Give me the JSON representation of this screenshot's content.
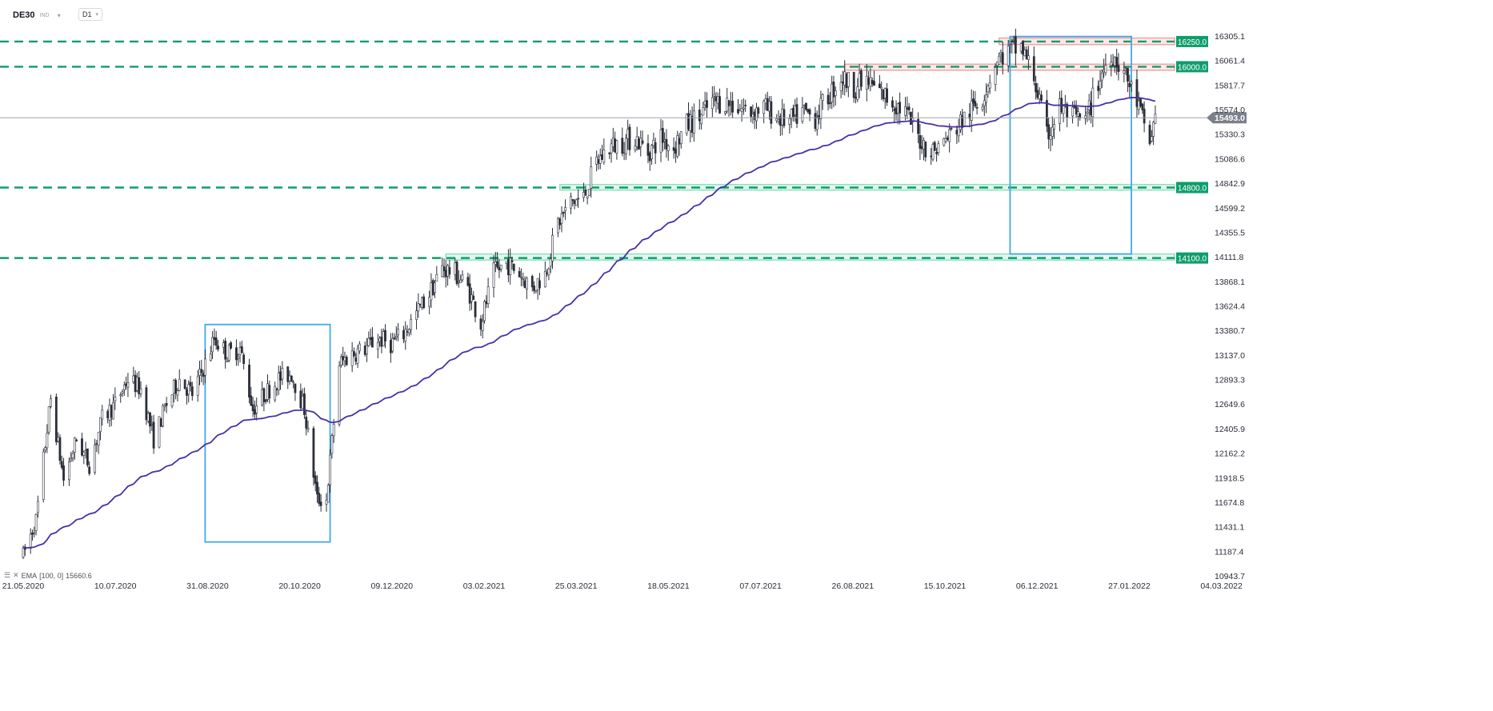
{
  "header": {
    "symbol": "DE30",
    "market": "IND",
    "timeframe": "D1",
    "caret": "▾"
  },
  "indicator": {
    "eye_icon": "☰",
    "close_icon": "✕",
    "label": "EMA",
    "params": "[100, 0]",
    "value": "15660.6"
  },
  "colors": {
    "up_candle": "#ffffff",
    "down_candle": "#2a2e39",
    "wick": "#2a2e39",
    "ema": "#4b2fa8",
    "support": "#0f9d6b",
    "resistance_zone": "#f4a3a3",
    "support_zone": "#8fe0c0",
    "box": "#3fa9e6",
    "price_tag": "#7b7f8a"
  },
  "chart_data": {
    "type": "candlestick",
    "timeframe": "D1",
    "y_axis_ticks": [
      "16305.1",
      "16061.4",
      "15817.7",
      "15574.0",
      "15330.3",
      "15086.6",
      "14842.9",
      "14599.2",
      "14355.5",
      "14111.8",
      "13868.1",
      "13624.4",
      "13380.7",
      "13137.0",
      "12893.3",
      "12649.6",
      "12405.9",
      "12162.2",
      "11918.5",
      "11674.8",
      "11431.1",
      "11187.4",
      "10943.7"
    ],
    "ylim": [
      10943.7,
      16305.1
    ],
    "x_axis_ticks": [
      "21.05.2020",
      "10.07.2020",
      "31.08.2020",
      "20.10.2020",
      "09.12.2020",
      "03.02.2021",
      "25.03.2021",
      "18.05.2021",
      "07.07.2021",
      "26.08.2021",
      "15.10.2021",
      "06.12.2021",
      "27.01.2022",
      "04.03.2022"
    ],
    "current_price": "15493.0",
    "levels": [
      {
        "label": "16250.0",
        "value": 16250.0,
        "kind": "resistance"
      },
      {
        "label": "16000.0",
        "value": 16000.0,
        "kind": "resistance"
      },
      {
        "label": "14800.0",
        "value": 14800.0,
        "kind": "support"
      },
      {
        "label": "14100.0",
        "value": 14100.0,
        "kind": "support"
      }
    ],
    "zones": [
      {
        "from": "20.12.2021",
        "to": "27.01.2022",
        "low": 16220,
        "high": 16285,
        "kind": "resistance",
        "start": "03.11.2021"
      },
      {
        "start": "11.08.2021",
        "low": 15965,
        "high": 16025,
        "kind": "resistance"
      },
      {
        "start": "09.03.2021",
        "low": 14775,
        "high": 14830,
        "kind": "support"
      },
      {
        "start": "06.01.2021",
        "low": 14080,
        "high": 14140,
        "kind": "support"
      }
    ],
    "boxes": [
      {
        "from": "28.08.2020",
        "to": "04.11.2020",
        "low": 11280,
        "high": 13440
      },
      {
        "from": "09.11.2021",
        "to": "14.01.2022",
        "low": 14140,
        "high": 16300
      }
    ],
    "ema_period": 100,
    "ema_last": 15660.6,
    "anchors": [
      [
        "21.05.2020",
        11150
      ],
      [
        "28.05.2020",
        11500
      ],
      [
        "05.06.2020",
        12700
      ],
      [
        "12.06.2020",
        11900
      ],
      [
        "19.06.2020",
        12300
      ],
      [
        "26.06.2020",
        12050
      ],
      [
        "03.07.2020",
        12500
      ],
      [
        "10.07.2020",
        12650
      ],
      [
        "17.07.2020",
        12900
      ],
      [
        "24.07.2020",
        12800
      ],
      [
        "31.07.2020",
        12300
      ],
      [
        "07.08.2020",
        12650
      ],
      [
        "14.08.2020",
        12900
      ],
      [
        "21.08.2020",
        12750
      ],
      [
        "28.08.2020",
        13050
      ],
      [
        "02.09.2020",
        13300
      ],
      [
        "09.09.2020",
        13150
      ],
      [
        "16.09.2020",
        13200
      ],
      [
        "23.09.2020",
        12600
      ],
      [
        "30.09.2020",
        12760
      ],
      [
        "07.10.2020",
        12900
      ],
      [
        "14.10.2020",
        12950
      ],
      [
        "21.10.2020",
        12600
      ],
      [
        "28.10.2020",
        11700
      ],
      [
        "02.11.2020",
        11700
      ],
      [
        "09.11.2020",
        13050
      ],
      [
        "16.11.2020",
        13150
      ],
      [
        "23.11.2020",
        13200
      ],
      [
        "30.11.2020",
        13300
      ],
      [
        "07.12.2020",
        13250
      ],
      [
        "14.12.2020",
        13350
      ],
      [
        "21.12.2020",
        13550
      ],
      [
        "28.12.2020",
        13750
      ],
      [
        "04.01.2021",
        14000
      ],
      [
        "11.01.2021",
        13950
      ],
      [
        "18.01.2021",
        13800
      ],
      [
        "25.01.2021",
        13450
      ],
      [
        "01.02.2021",
        13950
      ],
      [
        "08.02.2021",
        14050
      ],
      [
        "15.02.2021",
        13950
      ],
      [
        "22.02.2021",
        13800
      ],
      [
        "01.03.2021",
        13950
      ],
      [
        "08.03.2021",
        14450
      ],
      [
        "15.03.2021",
        14650
      ],
      [
        "22.03.2021",
        14700
      ],
      [
        "29.03.2021",
        15050
      ],
      [
        "05.04.2021",
        15200
      ],
      [
        "12.04.2021",
        15250
      ],
      [
        "19.04.2021",
        15300
      ],
      [
        "26.04.2021",
        15150
      ],
      [
        "03.05.2021",
        15300
      ],
      [
        "10.05.2021",
        15200
      ],
      [
        "17.05.2021",
        15420
      ],
      [
        "24.05.2021",
        15500
      ],
      [
        "31.05.2021",
        15650
      ],
      [
        "07.06.2021",
        15650
      ],
      [
        "14.06.2021",
        15600
      ],
      [
        "21.06.2021",
        15550
      ],
      [
        "28.06.2021",
        15600
      ],
      [
        "05.07.2021",
        15500
      ],
      [
        "12.07.2021",
        15450
      ],
      [
        "19.07.2021",
        15550
      ],
      [
        "26.07.2021",
        15500
      ],
      [
        "02.08.2021",
        15700
      ],
      [
        "09.08.2021",
        15900
      ],
      [
        "16.08.2021",
        15800
      ],
      [
        "23.08.2021",
        15850
      ],
      [
        "30.08.2021",
        15750
      ],
      [
        "06.09.2021",
        15650
      ],
      [
        "13.09.2021",
        15550
      ],
      [
        "20.09.2021",
        15300
      ],
      [
        "27.09.2021",
        15150
      ],
      [
        "04.10.2021",
        15250
      ],
      [
        "11.10.2021",
        15400
      ],
      [
        "18.10.2021",
        15550
      ],
      [
        "25.10.2021",
        15700
      ],
      [
        "01.11.2021",
        16050
      ],
      [
        "08.11.2021",
        16150
      ],
      [
        "15.11.2021",
        16200
      ],
      [
        "22.11.2021",
        15900
      ],
      [
        "29.11.2021",
        15300
      ],
      [
        "06.12.2021",
        15600
      ],
      [
        "13.12.2021",
        15500
      ],
      [
        "20.12.2021",
        15450
      ],
      [
        "27.12.2021",
        15850
      ],
      [
        "03.01.2022",
        16150
      ],
      [
        "10.01.2022",
        15950
      ],
      [
        "17.01.2022",
        15650
      ],
      [
        "24.01.2022",
        15250
      ],
      [
        "27.01.2022",
        15500
      ]
    ]
  }
}
